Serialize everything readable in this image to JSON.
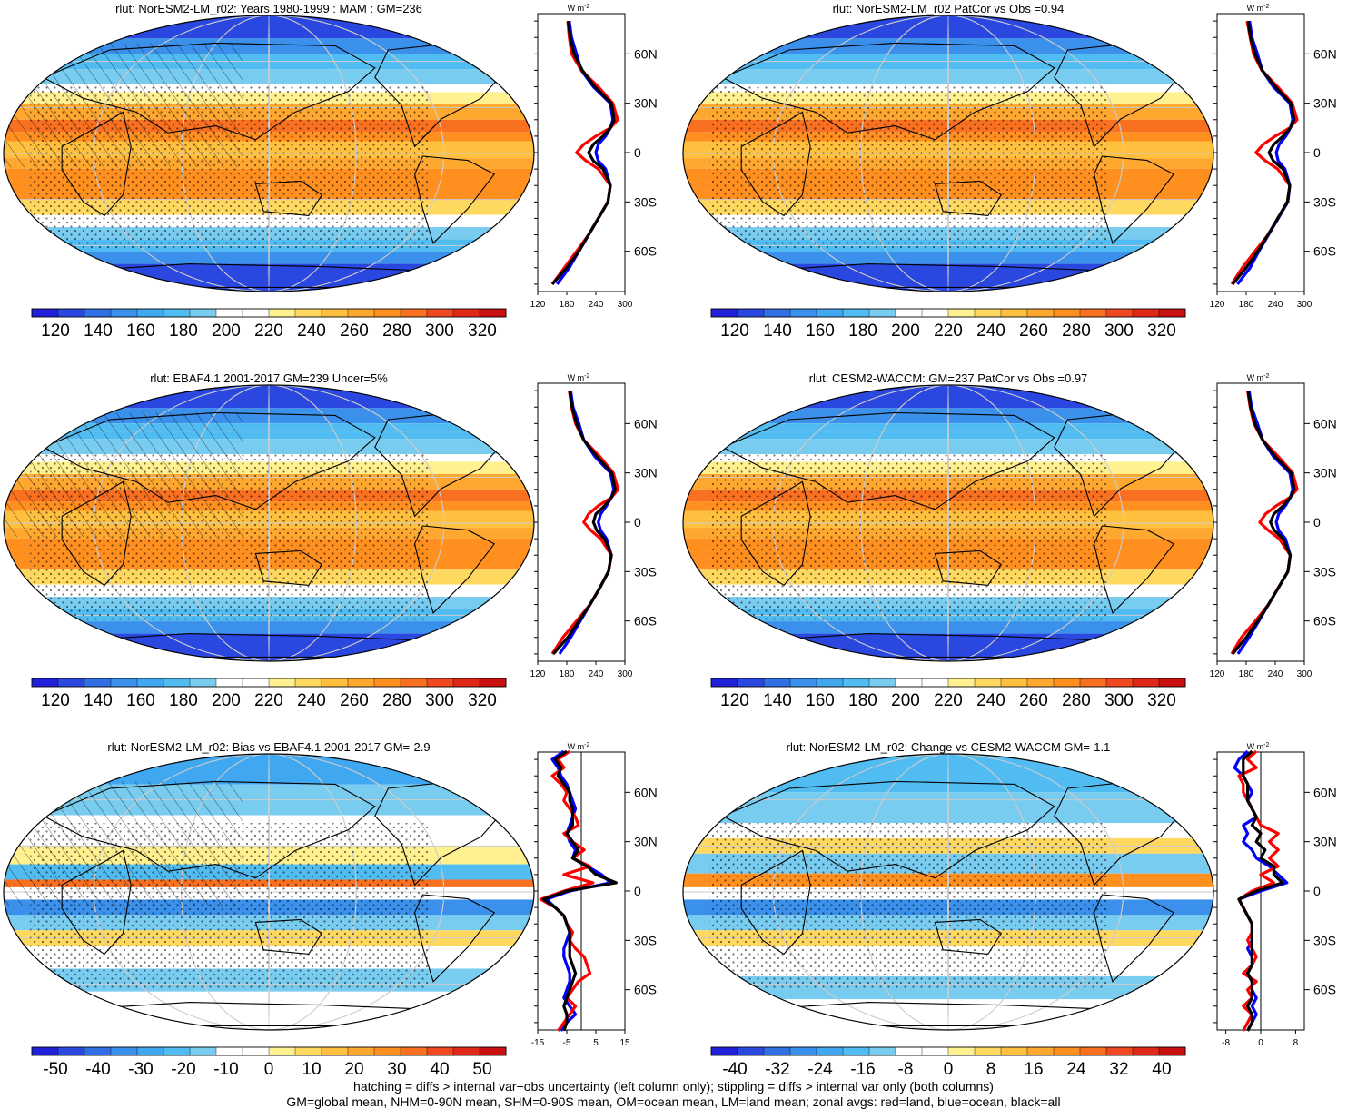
{
  "panels": [
    {
      "title": "rlut: NorESM2-LM_r02: Years 1980-1999 : MAM : GM=236",
      "map_kind": "abs",
      "hatch": true,
      "stipple": true,
      "colorbar": {
        "colors": "abs",
        "labels": [
          "120",
          "140",
          "160",
          "180",
          "200",
          "220",
          "240",
          "260",
          "280",
          "300",
          "320"
        ]
      },
      "profile": {
        "xmin": 120,
        "xmax": 300,
        "xticks": [
          "120",
          "180",
          "240",
          "300"
        ],
        "zero_line": false
      },
      "profile_unit": "W m-2"
    },
    {
      "title": "rlut: NorESM2-LM_r02 PatCor vs Obs =0.94",
      "map_kind": "abs",
      "hatch": false,
      "stipple": true,
      "colorbar": {
        "colors": "abs",
        "labels": [
          "120",
          "140",
          "160",
          "180",
          "200",
          "220",
          "240",
          "260",
          "280",
          "300",
          "320"
        ]
      },
      "profile": {
        "xmin": 120,
        "xmax": 300,
        "xticks": [
          "120",
          "180",
          "240",
          "300"
        ],
        "zero_line": false
      },
      "profile_unit": "W m-2"
    },
    {
      "title": "rlut: EBAF4.1 2001-2017 GM=239 Uncer=5%",
      "map_kind": "abs",
      "hatch": true,
      "stipple": true,
      "colorbar": {
        "colors": "abs",
        "labels": [
          "120",
          "140",
          "160",
          "180",
          "200",
          "220",
          "240",
          "260",
          "280",
          "300",
          "320"
        ]
      },
      "profile": {
        "xmin": 120,
        "xmax": 300,
        "xticks": [
          "120",
          "180",
          "240",
          "300"
        ],
        "zero_line": false
      },
      "profile_unit": "W m-2"
    },
    {
      "title": "rlut: CESM2-WACCM: GM=237 PatCor vs Obs =0.97",
      "map_kind": "abs",
      "hatch": false,
      "stipple": true,
      "colorbar": {
        "colors": "abs",
        "labels": [
          "120",
          "140",
          "160",
          "180",
          "200",
          "220",
          "240",
          "260",
          "280",
          "300",
          "320"
        ]
      },
      "profile": {
        "xmin": 120,
        "xmax": 300,
        "xticks": [
          "120",
          "180",
          "240",
          "300"
        ],
        "zero_line": false
      },
      "profile_unit": "W m-2"
    },
    {
      "title": "rlut: NorESM2-LM_r02: Bias vs EBAF4.1 2001-2017 GM=-2.9",
      "map_kind": "bias",
      "hatch": true,
      "stipple": true,
      "colorbar": {
        "colors": "div",
        "labels": [
          "-50",
          "-40",
          "-30",
          "-20",
          "-10",
          "0",
          "10",
          "20",
          "30",
          "40",
          "50"
        ]
      },
      "profile": {
        "xmin": -15,
        "xmax": 15,
        "xticks": [
          "-15",
          "-5",
          "5",
          "15"
        ],
        "zero_line": true
      },
      "profile_unit": "W m-2"
    },
    {
      "title": "rlut: NorESM2-LM_r02: Change vs CESM2-WACCM GM=-1.1",
      "map_kind": "change",
      "hatch": false,
      "stipple": true,
      "colorbar": {
        "colors": "div",
        "labels": [
          "-40",
          "-32",
          "-24",
          "-16",
          "-8",
          "0",
          "8",
          "16",
          "24",
          "32",
          "40"
        ]
      },
      "profile": {
        "xmin": -10,
        "xmax": 10,
        "xticks": [
          "-8",
          "0",
          "8"
        ],
        "zero_line": true
      },
      "profile_unit": "W m-2"
    }
  ],
  "latitude_labels": [
    "60N",
    "30N",
    "0",
    "30S",
    "60S"
  ],
  "colors": {
    "abs": [
      "#2020d8",
      "#2a48e0",
      "#3070e4",
      "#3a90ea",
      "#40a8f0",
      "#50bcf2",
      "#78ccf0",
      "#ffffff",
      "#ffffff",
      "#fff090",
      "#ffd860",
      "#ffc040",
      "#ffa830",
      "#ff9020",
      "#f87020",
      "#f04820",
      "#e02818",
      "#c81010"
    ],
    "div": [
      "#2020d8",
      "#2a48e0",
      "#3070e4",
      "#3a90ea",
      "#40a8f0",
      "#50bcf2",
      "#78ccf0",
      "#ffffff",
      "#ffffff",
      "#fff090",
      "#ffd860",
      "#ffc040",
      "#ffa830",
      "#ff9020",
      "#f87020",
      "#f04820",
      "#e02818",
      "#c81010"
    ],
    "zonal_land": "#ff0000",
    "zonal_ocean": "#0000ff",
    "zonal_all": "#000000"
  },
  "chart_data": [
    {
      "type": "line",
      "title": "rlut: NorESM2-LM_r02: Years 1980-1999 : MAM : GM=236",
      "ylabel": "W m-2",
      "y_ticks": [
        "60N",
        "30N",
        "0",
        "30S",
        "60S"
      ],
      "xlim": [
        120,
        300
      ],
      "lat": [
        80,
        70,
        60,
        50,
        40,
        30,
        20,
        15,
        10,
        5,
        0,
        -5,
        -10,
        -20,
        -30,
        -40,
        -50,
        -60,
        -70,
        -80
      ],
      "series": [
        {
          "name": "red=land",
          "values": [
            182,
            185,
            190,
            210,
            245,
            275,
            285,
            270,
            240,
            215,
            200,
            220,
            245,
            270,
            265,
            245,
            225,
            200,
            175,
            150
          ]
        },
        {
          "name": "blue=ocean",
          "values": [
            185,
            190,
            200,
            210,
            235,
            270,
            275,
            270,
            260,
            245,
            240,
            245,
            260,
            270,
            265,
            245,
            225,
            205,
            185,
            160
          ]
        },
        {
          "name": "black=all",
          "values": [
            183,
            187,
            195,
            212,
            238,
            272,
            278,
            270,
            255,
            235,
            225,
            235,
            255,
            270,
            265,
            245,
            225,
            205,
            180,
            150
          ]
        }
      ]
    },
    {
      "type": "line",
      "title": "rlut: NorESM2-LM_r02 PatCor vs Obs =0.94",
      "ylabel": "W m-2",
      "y_ticks": [
        "60N",
        "30N",
        "0",
        "30S",
        "60S"
      ],
      "xlim": [
        120,
        300
      ],
      "lat": [
        80,
        70,
        60,
        50,
        40,
        30,
        20,
        15,
        10,
        5,
        0,
        -5,
        -10,
        -20,
        -30,
        -40,
        -50,
        -60,
        -70,
        -80
      ],
      "series": [
        {
          "name": "red=land",
          "values": [
            182,
            188,
            195,
            212,
            245,
            275,
            285,
            270,
            240,
            215,
            200,
            220,
            245,
            270,
            265,
            245,
            225,
            198,
            172,
            150
          ]
        },
        {
          "name": "blue=ocean",
          "values": [
            187,
            192,
            203,
            213,
            236,
            270,
            276,
            271,
            262,
            248,
            242,
            246,
            260,
            270,
            266,
            246,
            226,
            206,
            188,
            162
          ]
        },
        {
          "name": "black=all",
          "values": [
            184,
            189,
            198,
            213,
            240,
            272,
            279,
            271,
            256,
            237,
            227,
            236,
            256,
            270,
            265,
            245,
            225,
            204,
            180,
            152
          ]
        }
      ]
    },
    {
      "type": "line",
      "title": "rlut: EBAF4.1 2001-2017 GM=239 Uncer=5%",
      "ylabel": "W m-2",
      "y_ticks": [
        "60N",
        "30N",
        "0",
        "30S",
        "60S"
      ],
      "xlim": [
        120,
        300
      ],
      "lat": [
        80,
        70,
        60,
        50,
        40,
        30,
        20,
        15,
        10,
        5,
        0,
        -5,
        -10,
        -20,
        -30,
        -40,
        -50,
        -60,
        -70,
        -80
      ],
      "series": [
        {
          "name": "red=land",
          "values": [
            185,
            190,
            198,
            215,
            248,
            276,
            286,
            272,
            245,
            225,
            215,
            230,
            250,
            272,
            266,
            248,
            228,
            200,
            172,
            150
          ]
        },
        {
          "name": "blue=ocean",
          "values": [
            188,
            193,
            205,
            215,
            238,
            270,
            277,
            272,
            262,
            250,
            245,
            250,
            262,
            272,
            266,
            248,
            228,
            208,
            188,
            165
          ]
        },
        {
          "name": "black=all",
          "values": [
            186,
            191,
            200,
            215,
            242,
            273,
            280,
            272,
            258,
            240,
            235,
            242,
            258,
            272,
            266,
            248,
            228,
            205,
            182,
            152
          ]
        }
      ]
    },
    {
      "type": "line",
      "title": "rlut: CESM2-WACCM: GM=237 PatCor vs Obs =0.97",
      "ylabel": "W m-2",
      "y_ticks": [
        "60N",
        "30N",
        "0",
        "30S",
        "60S"
      ],
      "xlim": [
        120,
        300
      ],
      "lat": [
        80,
        70,
        60,
        50,
        40,
        30,
        20,
        15,
        10,
        5,
        0,
        -5,
        -10,
        -20,
        -30,
        -40,
        -50,
        -60,
        -70,
        -80
      ],
      "series": [
        {
          "name": "red=land",
          "values": [
            183,
            188,
            196,
            214,
            246,
            276,
            285,
            270,
            242,
            220,
            208,
            226,
            248,
            271,
            266,
            246,
            226,
            199,
            170,
            150
          ]
        },
        {
          "name": "blue=ocean",
          "values": [
            186,
            191,
            203,
            214,
            236,
            270,
            276,
            271,
            261,
            247,
            242,
            247,
            261,
            271,
            266,
            246,
            226,
            206,
            186,
            163
          ]
        },
        {
          "name": "black=all",
          "values": [
            184,
            189,
            198,
            214,
            240,
            273,
            279,
            271,
            256,
            237,
            230,
            238,
            256,
            271,
            266,
            246,
            226,
            204,
            180,
            152
          ]
        }
      ]
    },
    {
      "type": "line",
      "title": "rlut: NorESM2-LM_r02: Bias vs EBAF4.1 2001-2017 GM=-2.9",
      "ylabel": "W m-2",
      "y_ticks": [
        "60N",
        "30N",
        "0",
        "30S",
        "60S"
      ],
      "xlim": [
        -15,
        15
      ],
      "lat": [
        85,
        80,
        75,
        70,
        65,
        60,
        55,
        50,
        45,
        40,
        35,
        30,
        25,
        20,
        15,
        10,
        5,
        0,
        -5,
        -10,
        -15,
        -20,
        -25,
        -30,
        -35,
        -40,
        -45,
        -50,
        -55,
        -60,
        -65,
        -70,
        -75,
        -80,
        -85
      ],
      "series": [
        {
          "name": "red=land",
          "values": [
            -4,
            -8,
            -6,
            -10,
            -7,
            -5,
            -6,
            -4,
            -2,
            -1,
            -6,
            -3,
            1,
            -3,
            3,
            -6,
            4,
            -6,
            -14,
            -9,
            -6,
            -5,
            -3,
            -4,
            -2,
            1,
            2,
            3,
            -1,
            -3,
            -5,
            -2,
            -4,
            -6,
            -8
          ]
        },
        {
          "name": "blue=ocean",
          "values": [
            -6,
            -10,
            -8,
            -7,
            -5,
            -4,
            -3,
            -2,
            -3,
            -4,
            -5,
            -4,
            -2,
            -3,
            2,
            7,
            10,
            -4,
            -12,
            -9,
            -6,
            -5,
            -4,
            -5,
            -6,
            -6,
            -5,
            -4,
            -4,
            -5,
            -6,
            -4,
            -2,
            -5,
            -7
          ]
        },
        {
          "name": "black=all",
          "values": [
            -5,
            -9,
            -7,
            -8,
            -6,
            -4,
            -4,
            -3,
            -3,
            -3,
            -5,
            -3,
            -1,
            -3,
            2,
            5,
            12,
            -5,
            -13,
            -9,
            -6,
            -5,
            -4,
            -4,
            -4,
            -4,
            -3,
            -2,
            -3,
            -4,
            -5,
            -6,
            -5,
            -5,
            -6
          ]
        }
      ]
    },
    {
      "type": "line",
      "title": "rlut: NorESM2-LM_r02: Change vs CESM2-WACCM GM=-1.1",
      "ylabel": "W m-2",
      "y_ticks": [
        "60N",
        "30N",
        "0",
        "30S",
        "60S"
      ],
      "xlim": [
        -10,
        10
      ],
      "lat": [
        85,
        80,
        75,
        70,
        65,
        60,
        55,
        50,
        45,
        40,
        35,
        30,
        25,
        20,
        15,
        10,
        5,
        0,
        -5,
        -10,
        -15,
        -20,
        -25,
        -30,
        -35,
        -40,
        -45,
        -50,
        -55,
        -60,
        -65,
        -70,
        -75,
        -80,
        -85
      ],
      "series": [
        {
          "name": "red=land",
          "values": [
            -1,
            -3,
            -1,
            -5,
            -4,
            -4,
            -3,
            -2,
            -1,
            0,
            4,
            2,
            4,
            2,
            4,
            0,
            3,
            -2,
            -5,
            -4,
            -3,
            -2,
            -2,
            -3,
            -2,
            -1,
            -2,
            -4,
            -1,
            -3,
            -2,
            -4,
            -2,
            -3,
            -4
          ]
        },
        {
          "name": "blue=ocean",
          "values": [
            -3,
            -5,
            -6,
            -4,
            -3,
            -2,
            -3,
            -2,
            -1,
            -4,
            -3,
            -4,
            -2,
            -1,
            2,
            4,
            6,
            0,
            -5,
            -4,
            -3,
            -2,
            -2,
            -2,
            -3,
            -2,
            -2,
            -3,
            -2,
            -2,
            -1,
            -2,
            -1,
            -2,
            -3
          ]
        },
        {
          "name": "black=all",
          "values": [
            -2,
            -4,
            -4,
            -4,
            -3,
            -3,
            -3,
            -2,
            -1,
            -2,
            0,
            -1,
            1,
            0,
            3,
            3,
            5,
            -1,
            -5,
            -4,
            -3,
            -2,
            -2,
            -2,
            -2,
            -2,
            -2,
            -3,
            -2,
            -2,
            -2,
            -3,
            -2,
            -2,
            -3
          ]
        }
      ]
    }
  ],
  "footer": {
    "line1": "hatching = diffs > internal var+obs uncertainty (left column only); stippling = diffs > internal var only (both columns)",
    "line2": "GM=global mean, NHM=0-90N mean, SHM=0-90S mean, OM=ocean mean, LM=land mean; zonal avgs: red=land, blue=ocean, black=all"
  }
}
